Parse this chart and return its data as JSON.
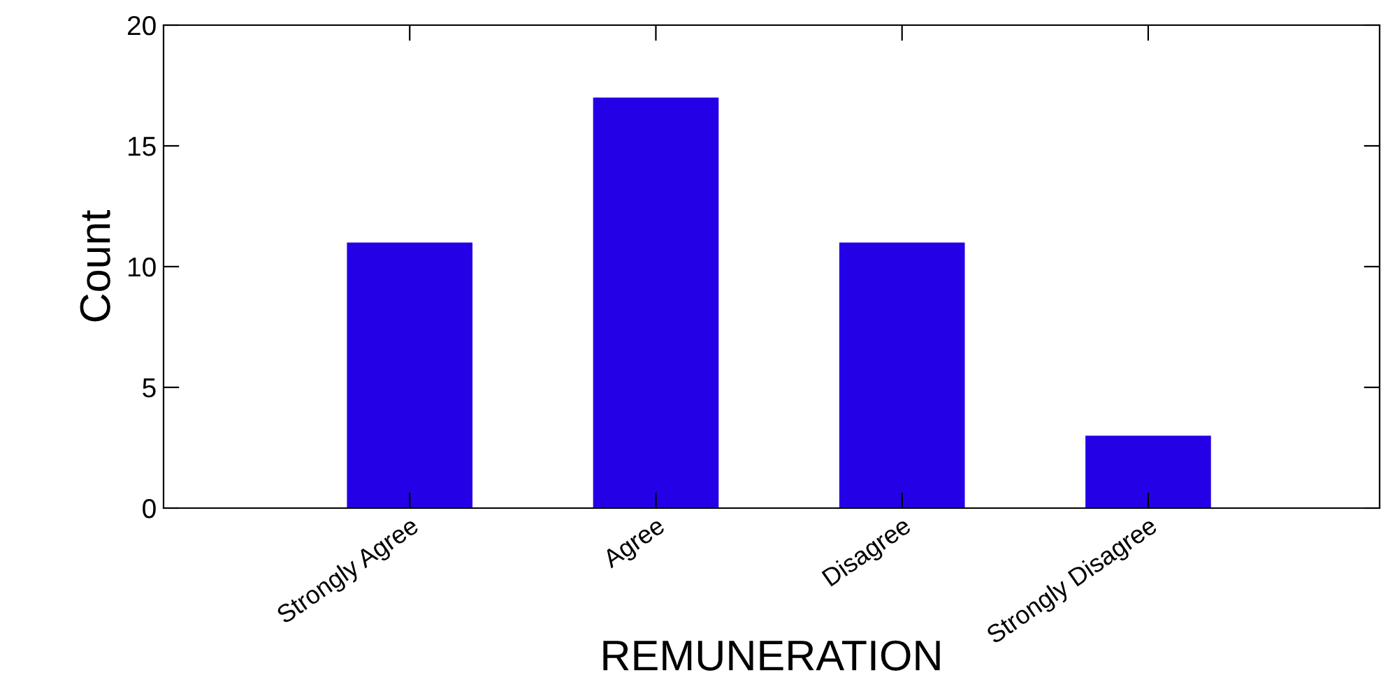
{
  "chart_data": {
    "type": "bar",
    "xlabel": "REMUNERATION",
    "ylabel": "Count",
    "categories": [
      "Strongly Agree",
      "Agree",
      "Disagree",
      "Strongly Disagree"
    ],
    "values": [
      11,
      17,
      11,
      3
    ],
    "color": "#2400e6",
    "ylim": [
      0,
      20
    ],
    "yticks": [
      0,
      5,
      10,
      15,
      20
    ],
    "grid": false,
    "legend": false
  }
}
